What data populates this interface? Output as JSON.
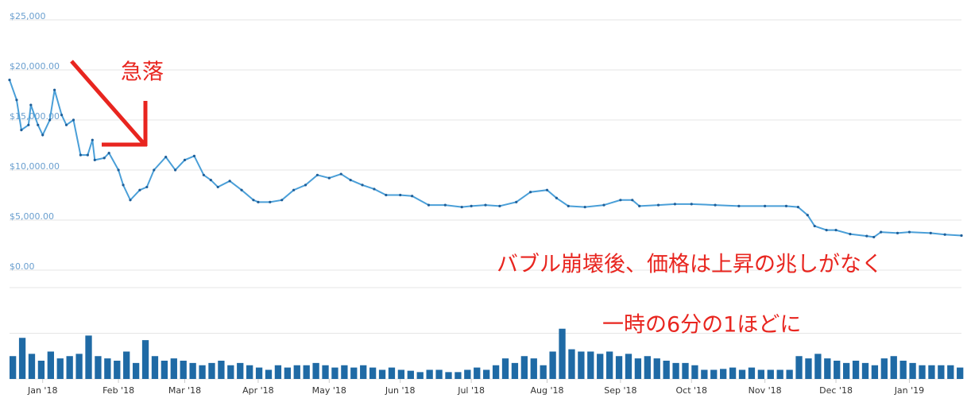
{
  "chart_data": [
    {
      "type": "line",
      "color": "#4a9fd8",
      "marker_color": "#1f5f99",
      "x": [
        0,
        3,
        5,
        8,
        9,
        12,
        14,
        17,
        19,
        22,
        24,
        27,
        30,
        33,
        35,
        36,
        40,
        42,
        46,
        48,
        51,
        55,
        58,
        61,
        66,
        70,
        74,
        78,
        82,
        85,
        88,
        93,
        98,
        103,
        105,
        110,
        115,
        120,
        125,
        130,
        135,
        140,
        144,
        149,
        154,
        159,
        165,
        170,
        177,
        184,
        191,
        195,
        201,
        207,
        214,
        220,
        227,
        231,
        236,
        243,
        251,
        258,
        263,
        266,
        274,
        281,
        288,
        298,
        308,
        319,
        328,
        333,
        337,
        340,
        345,
        349,
        355,
        362,
        365,
        368,
        375,
        380,
        389,
        395,
        402
      ],
      "values": [
        19000,
        17000,
        14000,
        14500,
        16500,
        14500,
        13500,
        15000,
        18000,
        15500,
        14500,
        15000,
        11500,
        11500,
        13000,
        11000,
        11200,
        11700,
        10000,
        8500,
        7000,
        8000,
        8300,
        10000,
        11300,
        10000,
        11000,
        11400,
        9500,
        9000,
        8300,
        8900,
        8000,
        7000,
        6800,
        6800,
        7000,
        8000,
        8500,
        9500,
        9200,
        9600,
        9000,
        8500,
        8100,
        7500,
        7500,
        7400,
        6500,
        6500,
        6300,
        6400,
        6500,
        6400,
        6800,
        7800,
        8000,
        7200,
        6400,
        6300,
        6500,
        7000,
        7000,
        6400,
        6500,
        6600,
        6600,
        6500,
        6400,
        6400,
        6400,
        6300,
        5500,
        4400,
        4000,
        4000,
        3600,
        3400,
        3300,
        3800,
        3700,
        3800,
        3700,
        3550,
        3450
      ],
      "xlim": [
        0,
        402
      ],
      "ylim": [
        0,
        25000
      ],
      "yticks": [
        {
          "value": 0,
          "label": "$0.00"
        },
        {
          "value": 5000,
          "label": "$5,000.00"
        },
        {
          "value": 10000,
          "label": "$10,000.00"
        },
        {
          "value": 15000,
          "label": "$15,000.00"
        },
        {
          "value": 20000,
          "label": "$20,000.00"
        },
        {
          "value": 25000,
          "label": "$25,000"
        }
      ],
      "grid": true,
      "annotations": [
        "急落",
        "バブル崩壊後、価格は上昇の兆しがなく",
        "一時の6分の1ほどに"
      ]
    },
    {
      "type": "bar",
      "color": "#1f6aa5",
      "x": [
        0,
        4,
        8,
        12,
        16,
        20,
        24,
        28,
        32,
        36,
        40,
        44,
        48,
        52,
        56,
        60,
        64,
        68,
        72,
        76,
        80,
        84,
        88,
        92,
        96,
        100,
        104,
        108,
        112,
        116,
        120,
        124,
        128,
        132,
        136,
        140,
        144,
        148,
        152,
        156,
        160,
        164,
        168,
        172,
        176,
        180,
        184,
        188,
        192,
        196,
        200,
        204,
        208,
        212,
        216,
        220,
        224,
        228,
        232,
        236,
        240,
        244,
        248,
        252,
        256,
        260,
        264,
        268,
        272,
        276,
        280,
        284,
        288,
        292,
        296,
        300,
        304,
        308,
        312,
        316,
        320,
        324,
        328,
        332,
        336,
        340,
        344,
        348,
        352,
        356,
        360,
        364,
        368,
        372,
        376,
        380,
        384,
        388,
        392,
        396,
        400
      ],
      "values": [
        0.5,
        0.9,
        0.55,
        0.4,
        0.6,
        0.45,
        0.5,
        0.55,
        0.95,
        0.5,
        0.45,
        0.4,
        0.6,
        0.35,
        0.85,
        0.5,
        0.4,
        0.45,
        0.4,
        0.35,
        0.3,
        0.35,
        0.4,
        0.3,
        0.35,
        0.3,
        0.25,
        0.2,
        0.3,
        0.25,
        0.3,
        0.3,
        0.35,
        0.3,
        0.25,
        0.3,
        0.25,
        0.3,
        0.25,
        0.2,
        0.25,
        0.2,
        0.18,
        0.15,
        0.2,
        0.2,
        0.15,
        0.15,
        0.2,
        0.25,
        0.2,
        0.3,
        0.45,
        0.35,
        0.5,
        0.45,
        0.3,
        0.6,
        1.1,
        0.65,
        0.6,
        0.6,
        0.55,
        0.6,
        0.5,
        0.55,
        0.45,
        0.5,
        0.45,
        0.4,
        0.35,
        0.35,
        0.3,
        0.2,
        0.2,
        0.22,
        0.25,
        0.2,
        0.25,
        0.2,
        0.2,
        0.2,
        0.2,
        0.5,
        0.45,
        0.55,
        0.45,
        0.4,
        0.35,
        0.4,
        0.35,
        0.3,
        0.45,
        0.5,
        0.4,
        0.35,
        0.3,
        0.3,
        0.3,
        0.3,
        0.25
      ],
      "xlim": [
        0,
        402
      ],
      "ylim": [
        0,
        2
      ],
      "yticks": [
        0,
        1,
        2
      ],
      "grid": true,
      "xticks": [
        {
          "value": 14,
          "label": "Jan '18"
        },
        {
          "value": 46,
          "label": "Feb '18"
        },
        {
          "value": 74,
          "label": "Mar '18"
        },
        {
          "value": 105,
          "label": "Apr '18"
        },
        {
          "value": 135,
          "label": "May '18"
        },
        {
          "value": 165,
          "label": "Jun '18"
        },
        {
          "value": 195,
          "label": "Jul '18"
        },
        {
          "value": 227,
          "label": "Aug '18"
        },
        {
          "value": 258,
          "label": "Sep '18"
        },
        {
          "value": 288,
          "label": "Oct '18"
        },
        {
          "value": 319,
          "label": "Nov '18"
        },
        {
          "value": 349,
          "label": "Dec '18"
        },
        {
          "value": 380,
          "label": "Jan '19"
        }
      ]
    }
  ]
}
